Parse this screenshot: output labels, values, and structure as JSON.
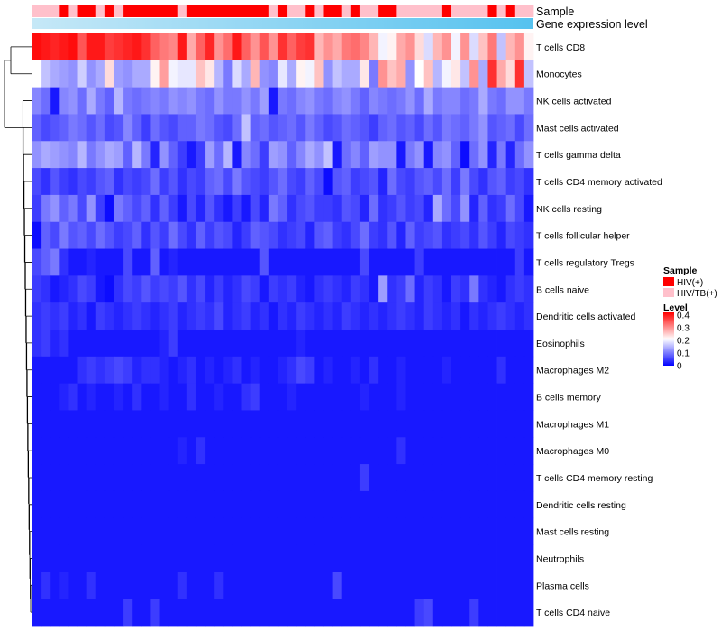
{
  "chart_data": {
    "type": "heatmap",
    "annotations": {
      "sample_label": "Sample",
      "gene_label": "Gene expression level"
    },
    "legend": {
      "sample": {
        "title": "Sample",
        "entries": [
          {
            "label": "HIV(+)",
            "color": "#ff0000"
          },
          {
            "label": "HIV/TB(+)",
            "color": "#ffc0cb"
          }
        ]
      },
      "level": {
        "title": "Level",
        "ticks": [
          "0.4",
          "0.3",
          "0.2",
          "0.1",
          "0"
        ],
        "tick_values": [
          0.4,
          0.3,
          0.2,
          0.1,
          0
        ],
        "range": [
          0,
          0.42
        ],
        "colors": {
          "low": "#0000ff",
          "mid": "#ffffff",
          "high": "#ff0000"
        }
      }
    },
    "rows": [
      "T cells CD8",
      "Monocytes",
      "NK cells activated",
      "Mast cells activated",
      "T cells gamma delta",
      "T cells CD4 memory activated",
      "NK cells resting",
      "T cells follicular helper",
      "T cells regulatory  Tregs",
      "B cells naive",
      "Dendritic cells activated",
      "Eosinophils",
      "Macrophages M2",
      "B cells memory",
      "Macrophages M1",
      "Macrophages M0",
      "T cells CD4 memory resting",
      "Dendritic cells resting",
      "Mast cells resting",
      "Neutrophils",
      "Plasma cells",
      "T cells CD4 naive"
    ],
    "sample_groups": [
      1,
      1,
      1,
      0,
      1,
      0,
      0,
      1,
      0,
      1,
      0,
      0,
      0,
      0,
      0,
      0,
      1,
      0,
      0,
      0,
      0,
      0,
      0,
      0,
      0,
      0,
      1,
      0,
      1,
      1,
      0,
      1,
      0,
      0,
      1,
      0,
      1,
      1,
      0,
      0,
      1,
      1,
      1,
      1,
      1,
      0,
      1,
      1,
      1,
      1,
      0,
      1,
      0,
      1,
      1
    ],
    "values": [
      [
        0.41,
        0.4,
        0.39,
        0.4,
        0.41,
        0.35,
        0.4,
        0.4,
        0.37,
        0.38,
        0.39,
        0.4,
        0.38,
        0.34,
        0.32,
        0.31,
        0.4,
        0.28,
        0.34,
        0.39,
        0.3,
        0.33,
        0.4,
        0.34,
        0.3,
        0.35,
        0.3,
        0.38,
        0.34,
        0.37,
        0.38,
        0.27,
        0.3,
        0.28,
        0.32,
        0.33,
        0.31,
        0.27,
        0.2,
        0.22,
        0.28,
        0.3,
        0.24,
        0.18,
        0.27,
        0.3,
        0.2,
        0.3,
        0.18,
        0.26,
        0.32,
        0.16,
        0.27,
        0.3,
        0.22
      ],
      [
        0.21,
        0.16,
        0.14,
        0.13,
        0.12,
        0.17,
        0.12,
        0.14,
        0.24,
        0.13,
        0.12,
        0.14,
        0.14,
        0.22,
        0.29,
        0.2,
        0.19,
        0.19,
        0.26,
        0.23,
        0.15,
        0.1,
        0.18,
        0.14,
        0.27,
        0.12,
        0.11,
        0.19,
        0.14,
        0.22,
        0.2,
        0.26,
        0.12,
        0.16,
        0.14,
        0.14,
        0.23,
        0.1,
        0.3,
        0.26,
        0.28,
        0.12,
        0.21,
        0.26,
        0.15,
        0.2,
        0.23,
        0.16,
        0.3,
        0.14,
        0.38,
        0.28,
        0.24,
        0.38,
        0.16
      ],
      [
        0.11,
        0.09,
        0.02,
        0.11,
        0.12,
        0.09,
        0.14,
        0.1,
        0.08,
        0.15,
        0.1,
        0.09,
        0.1,
        0.11,
        0.1,
        0.12,
        0.11,
        0.12,
        0.1,
        0.09,
        0.12,
        0.1,
        0.1,
        0.12,
        0.1,
        0.13,
        0.02,
        0.1,
        0.09,
        0.11,
        0.12,
        0.1,
        0.09,
        0.11,
        0.12,
        0.1,
        0.08,
        0.11,
        0.1,
        0.09,
        0.1,
        0.12,
        0.09,
        0.14,
        0.1,
        0.11,
        0.11,
        0.09,
        0.1,
        0.14,
        0.1,
        0.09,
        0.12,
        0.12,
        0.1
      ],
      [
        0.08,
        0.06,
        0.07,
        0.08,
        0.1,
        0.09,
        0.07,
        0.09,
        0.06,
        0.07,
        0.11,
        0.08,
        0.05,
        0.09,
        0.07,
        0.06,
        0.08,
        0.08,
        0.1,
        0.09,
        0.07,
        0.06,
        0.09,
        0.16,
        0.08,
        0.09,
        0.07,
        0.08,
        0.09,
        0.07,
        0.1,
        0.08,
        0.06,
        0.07,
        0.09,
        0.08,
        0.07,
        0.05,
        0.08,
        0.09,
        0.07,
        0.08,
        0.06,
        0.09,
        0.07,
        0.1,
        0.09,
        0.08,
        0.1,
        0.12,
        0.07,
        0.08,
        0.09,
        0.06,
        0.09
      ],
      [
        0.12,
        0.14,
        0.13,
        0.12,
        0.11,
        0.15,
        0.1,
        0.12,
        0.14,
        0.13,
        0.08,
        0.15,
        0.1,
        0.03,
        0.12,
        0.08,
        0.05,
        0.02,
        0.05,
        0.13,
        0.09,
        0.15,
        0.02,
        0.11,
        0.09,
        0.05,
        0.13,
        0.12,
        0.08,
        0.11,
        0.14,
        0.12,
        0.16,
        0.02,
        0.09,
        0.11,
        0.08,
        0.13,
        0.12,
        0.12,
        0.02,
        0.1,
        0.12,
        0.02,
        0.11,
        0.12,
        0.08,
        0.01,
        0.09,
        0.12,
        0.03,
        0.1,
        0.03,
        0.09,
        0.12
      ],
      [
        0.06,
        0.04,
        0.07,
        0.05,
        0.04,
        0.06,
        0.05,
        0.07,
        0.08,
        0.04,
        0.06,
        0.05,
        0.06,
        0.09,
        0.05,
        0.07,
        0.04,
        0.06,
        0.05,
        0.08,
        0.09,
        0.06,
        0.1,
        0.07,
        0.06,
        0.05,
        0.07,
        0.09,
        0.06,
        0.05,
        0.08,
        0.06,
        0.01,
        0.07,
        0.08,
        0.05,
        0.06,
        0.07,
        0.03,
        0.09,
        0.06,
        0.05,
        0.07,
        0.08,
        0.06,
        0.09,
        0.05,
        0.1,
        0.06,
        0.04,
        0.07,
        0.08,
        0.05,
        0.06,
        0.04
      ],
      [
        0.05,
        0.1,
        0.12,
        0.08,
        0.1,
        0.06,
        0.12,
        0.05,
        0.01,
        0.1,
        0.08,
        0.06,
        0.08,
        0.04,
        0.08,
        0.05,
        0.02,
        0.06,
        0.03,
        0.07,
        0.04,
        0.02,
        0.05,
        0.02,
        0.06,
        0.03,
        0.1,
        0.08,
        0.04,
        0.06,
        0.07,
        0.05,
        0.05,
        0.04,
        0.07,
        0.06,
        0.03,
        0.09,
        0.04,
        0.05,
        0.07,
        0.05,
        0.06,
        0.03,
        0.14,
        0.09,
        0.06,
        0.12,
        0.03,
        0.08,
        0.04,
        0.05,
        0.09,
        0.06,
        0.02
      ],
      [
        0.01,
        0.08,
        0.06,
        0.1,
        0.07,
        0.08,
        0.06,
        0.09,
        0.07,
        0.05,
        0.06,
        0.08,
        0.04,
        0.07,
        0.05,
        0.09,
        0.06,
        0.04,
        0.08,
        0.05,
        0.07,
        0.06,
        0.03,
        0.05,
        0.08,
        0.07,
        0.06,
        0.04,
        0.05,
        0.06,
        0.03,
        0.07,
        0.08,
        0.05,
        0.04,
        0.06,
        0.09,
        0.05,
        0.04,
        0.07,
        0.03,
        0.08,
        0.05,
        0.06,
        0.07,
        0.04,
        0.05,
        0.06,
        0.04,
        0.07,
        0.05,
        0.03,
        0.06,
        0.05,
        0.04
      ],
      [
        0.06,
        0.08,
        0.1,
        0.04,
        0.02,
        0.02,
        0.03,
        0.02,
        0.02,
        0.02,
        0.06,
        0.02,
        0.02,
        0.08,
        0.02,
        0.03,
        0.02,
        0.02,
        0.02,
        0.02,
        0.02,
        0.02,
        0.02,
        0.02,
        0.02,
        0.07,
        0.02,
        0.02,
        0.02,
        0.02,
        0.02,
        0.02,
        0.02,
        0.02,
        0.02,
        0.02,
        0.06,
        0.02,
        0.02,
        0.02,
        0.02,
        0.02,
        0.05,
        0.02,
        0.02,
        0.02,
        0.02,
        0.02,
        0.02,
        0.02,
        0.02,
        0.02,
        0.02,
        0.05,
        0.02
      ],
      [
        0.05,
        0.04,
        0.02,
        0.03,
        0.04,
        0.06,
        0.05,
        0.02,
        0.01,
        0.04,
        0.06,
        0.05,
        0.07,
        0.05,
        0.06,
        0.05,
        0.07,
        0.04,
        0.06,
        0.03,
        0.05,
        0.03,
        0.04,
        0.06,
        0.05,
        0.02,
        0.05,
        0.04,
        0.05,
        0.03,
        0.02,
        0.04,
        0.05,
        0.04,
        0.03,
        0.05,
        0.04,
        0.02,
        0.13,
        0.04,
        0.05,
        0.09,
        0.03,
        0.05,
        0.04,
        0.02,
        0.05,
        0.04,
        0.1,
        0.04,
        0.03,
        0.02,
        0.04,
        0.05,
        0.04
      ],
      [
        0.04,
        0.05,
        0.04,
        0.05,
        0.03,
        0.04,
        0.02,
        0.05,
        0.04,
        0.03,
        0.04,
        0.05,
        0.04,
        0.03,
        0.04,
        0.05,
        0.03,
        0.04,
        0.05,
        0.04,
        0.06,
        0.03,
        0.04,
        0.05,
        0.03,
        0.04,
        0.02,
        0.04,
        0.03,
        0.05,
        0.04,
        0.03,
        0.04,
        0.03,
        0.05,
        0.04,
        0.03,
        0.04,
        0.03,
        0.04,
        0.05,
        0.04,
        0.03,
        0.05,
        0.04,
        0.03,
        0.04,
        0.02,
        0.04,
        0.03,
        0.04,
        0.05,
        0.04,
        0.03,
        0.04
      ],
      [
        0.04,
        0.05,
        0.03,
        0.04,
        0.02,
        0.02,
        0.02,
        0.02,
        0.02,
        0.02,
        0.02,
        0.02,
        0.02,
        0.02,
        0.03,
        0.05,
        0.02,
        0.02,
        0.02,
        0.02,
        0.02,
        0.02,
        0.02,
        0.02,
        0.02,
        0.02,
        0.02,
        0.02,
        0.02,
        0.03,
        0.02,
        0.02,
        0.02,
        0.02,
        0.02,
        0.02,
        0.02,
        0.02,
        0.02,
        0.02,
        0.02,
        0.02,
        0.02,
        0.02,
        0.02,
        0.02,
        0.02,
        0.02,
        0.02,
        0.02,
        0.02,
        0.02,
        0.02,
        0.02,
        0.02
      ],
      [
        0.02,
        0.02,
        0.02,
        0.02,
        0.02,
        0.04,
        0.05,
        0.04,
        0.05,
        0.06,
        0.05,
        0.03,
        0.04,
        0.04,
        0.03,
        0.02,
        0.03,
        0.04,
        0.02,
        0.03,
        0.02,
        0.03,
        0.04,
        0.02,
        0.03,
        0.02,
        0.02,
        0.03,
        0.04,
        0.06,
        0.05,
        0.02,
        0.03,
        0.02,
        0.02,
        0.03,
        0.02,
        0.04,
        0.02,
        0.02,
        0.03,
        0.02,
        0.02,
        0.02,
        0.02,
        0.03,
        0.02,
        0.02,
        0.02,
        0.02,
        0.02,
        0.04,
        0.02,
        0.02,
        0.02
      ],
      [
        0.02,
        0.02,
        0.02,
        0.03,
        0.04,
        0.02,
        0.03,
        0.02,
        0.02,
        0.03,
        0.02,
        0.04,
        0.02,
        0.02,
        0.03,
        0.02,
        0.02,
        0.04,
        0.02,
        0.02,
        0.03,
        0.02,
        0.02,
        0.04,
        0.05,
        0.02,
        0.02,
        0.02,
        0.03,
        0.02,
        0.02,
        0.02,
        0.02,
        0.02,
        0.02,
        0.02,
        0.03,
        0.02,
        0.02,
        0.02,
        0.03,
        0.02,
        0.02,
        0.02,
        0.02,
        0.02,
        0.02,
        0.02,
        0.02,
        0.02,
        0.02,
        0.02,
        0.02,
        0.02,
        0.02
      ],
      [
        0.02,
        0.02,
        0.02,
        0.02,
        0.02,
        0.02,
        0.02,
        0.02,
        0.02,
        0.02,
        0.02,
        0.02,
        0.02,
        0.02,
        0.02,
        0.02,
        0.02,
        0.02,
        0.02,
        0.02,
        0.02,
        0.02,
        0.02,
        0.02,
        0.02,
        0.02,
        0.02,
        0.02,
        0.02,
        0.02,
        0.02,
        0.02,
        0.02,
        0.02,
        0.02,
        0.02,
        0.02,
        0.02,
        0.02,
        0.02,
        0.02,
        0.02,
        0.02,
        0.02,
        0.02,
        0.02,
        0.02,
        0.02,
        0.02,
        0.02,
        0.02,
        0.02,
        0.02,
        0.02,
        0.02
      ],
      [
        0.02,
        0.02,
        0.02,
        0.02,
        0.02,
        0.02,
        0.02,
        0.02,
        0.02,
        0.02,
        0.02,
        0.02,
        0.02,
        0.02,
        0.02,
        0.02,
        0.03,
        0.02,
        0.04,
        0.02,
        0.02,
        0.02,
        0.02,
        0.02,
        0.02,
        0.02,
        0.02,
        0.02,
        0.02,
        0.02,
        0.02,
        0.02,
        0.02,
        0.02,
        0.02,
        0.02,
        0.02,
        0.02,
        0.02,
        0.02,
        0.04,
        0.02,
        0.02,
        0.02,
        0.02,
        0.02,
        0.02,
        0.02,
        0.02,
        0.02,
        0.02,
        0.02,
        0.02,
        0.02,
        0.02
      ],
      [
        0.02,
        0.02,
        0.02,
        0.02,
        0.02,
        0.02,
        0.02,
        0.02,
        0.02,
        0.02,
        0.02,
        0.02,
        0.02,
        0.02,
        0.02,
        0.02,
        0.02,
        0.02,
        0.02,
        0.02,
        0.02,
        0.02,
        0.02,
        0.02,
        0.02,
        0.02,
        0.02,
        0.02,
        0.02,
        0.02,
        0.02,
        0.02,
        0.02,
        0.02,
        0.02,
        0.02,
        0.05,
        0.02,
        0.02,
        0.02,
        0.02,
        0.02,
        0.02,
        0.02,
        0.02,
        0.02,
        0.02,
        0.02,
        0.02,
        0.02,
        0.02,
        0.02,
        0.02,
        0.02,
        0.02
      ],
      [
        0.02,
        0.02,
        0.02,
        0.02,
        0.02,
        0.02,
        0.02,
        0.02,
        0.02,
        0.02,
        0.02,
        0.02,
        0.02,
        0.02,
        0.02,
        0.02,
        0.02,
        0.02,
        0.02,
        0.02,
        0.02,
        0.02,
        0.02,
        0.02,
        0.02,
        0.02,
        0.02,
        0.02,
        0.02,
        0.02,
        0.02,
        0.02,
        0.02,
        0.02,
        0.02,
        0.02,
        0.02,
        0.02,
        0.02,
        0.02,
        0.02,
        0.02,
        0.02,
        0.02,
        0.02,
        0.02,
        0.02,
        0.02,
        0.02,
        0.02,
        0.02,
        0.02,
        0.02,
        0.02,
        0.02
      ],
      [
        0.02,
        0.02,
        0.02,
        0.02,
        0.02,
        0.02,
        0.02,
        0.02,
        0.02,
        0.02,
        0.02,
        0.02,
        0.02,
        0.02,
        0.02,
        0.02,
        0.02,
        0.02,
        0.02,
        0.02,
        0.02,
        0.02,
        0.02,
        0.02,
        0.02,
        0.02,
        0.02,
        0.02,
        0.02,
        0.02,
        0.02,
        0.02,
        0.02,
        0.02,
        0.02,
        0.02,
        0.02,
        0.02,
        0.02,
        0.02,
        0.02,
        0.02,
        0.02,
        0.02,
        0.02,
        0.02,
        0.02,
        0.02,
        0.02,
        0.02,
        0.02,
        0.02,
        0.02,
        0.02,
        0.02
      ],
      [
        0.02,
        0.02,
        0.02,
        0.02,
        0.02,
        0.02,
        0.02,
        0.02,
        0.02,
        0.02,
        0.02,
        0.02,
        0.02,
        0.02,
        0.02,
        0.02,
        0.02,
        0.02,
        0.02,
        0.02,
        0.02,
        0.02,
        0.02,
        0.02,
        0.02,
        0.02,
        0.02,
        0.02,
        0.02,
        0.02,
        0.02,
        0.02,
        0.02,
        0.02,
        0.02,
        0.02,
        0.02,
        0.02,
        0.02,
        0.02,
        0.02,
        0.02,
        0.02,
        0.02,
        0.02,
        0.02,
        0.02,
        0.02,
        0.02,
        0.02,
        0.02,
        0.02,
        0.02,
        0.02,
        0.02
      ],
      [
        0.02,
        0.04,
        0.02,
        0.03,
        0.02,
        0.02,
        0.04,
        0.02,
        0.02,
        0.02,
        0.02,
        0.02,
        0.02,
        0.02,
        0.02,
        0.02,
        0.04,
        0.02,
        0.02,
        0.02,
        0.04,
        0.02,
        0.02,
        0.02,
        0.02,
        0.02,
        0.02,
        0.02,
        0.02,
        0.02,
        0.02,
        0.02,
        0.02,
        0.06,
        0.02,
        0.02,
        0.02,
        0.02,
        0.02,
        0.02,
        0.02,
        0.02,
        0.02,
        0.02,
        0.02,
        0.02,
        0.02,
        0.02,
        0.02,
        0.02,
        0.02,
        0.02,
        0.02,
        0.02,
        0.02
      ],
      [
        0.02,
        0.02,
        0.02,
        0.02,
        0.02,
        0.02,
        0.02,
        0.02,
        0.02,
        0.02,
        0.05,
        0.02,
        0.02,
        0.05,
        0.02,
        0.02,
        0.02,
        0.02,
        0.02,
        0.02,
        0.02,
        0.02,
        0.02,
        0.02,
        0.02,
        0.02,
        0.02,
        0.02,
        0.02,
        0.02,
        0.02,
        0.02,
        0.02,
        0.02,
        0.02,
        0.02,
        0.02,
        0.02,
        0.02,
        0.02,
        0.02,
        0.02,
        0.05,
        0.06,
        0.02,
        0.02,
        0.02,
        0.02,
        0.05,
        0.02,
        0.02,
        0.02,
        0.02,
        0.02,
        0.02
      ]
    ]
  }
}
